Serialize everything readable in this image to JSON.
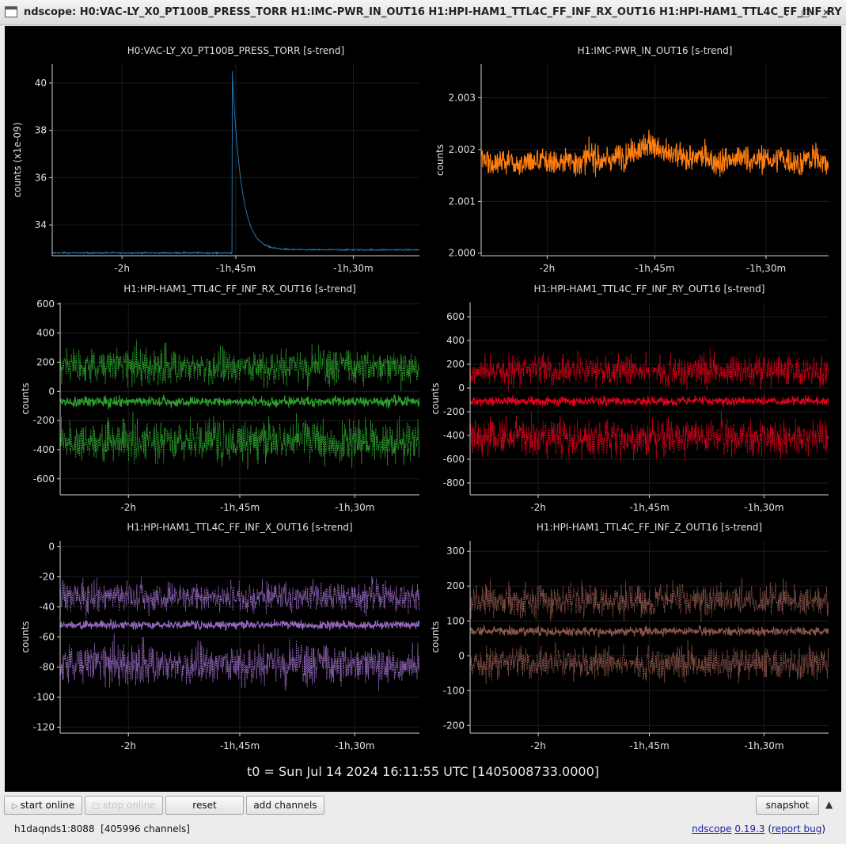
{
  "window": {
    "title": "ndscope: H0:VAC-LY_X0_PT100B_PRESS_TORR H1:IMC-PWR_IN_OUT16 H1:HPI-HAM1_TTL4C_FF_INF_RX_OUT16 H1:HPI-HAM1_TTL4C_FF_INF_RY",
    "minimize": "⌄",
    "maximize": "▢",
    "close": "✕"
  },
  "xticks": [
    "-2h",
    "-1h,45m",
    "-1h,30m"
  ],
  "t0_text": "t0 = Sun Jul 14 2024 16:11:55 UTC [1405008733.0000]",
  "toolbar": {
    "start_online": "start online",
    "stop_online": "stop online",
    "reset": "reset",
    "add_channels": "add channels",
    "snapshot": "snapshot",
    "collapse_icon": "▲"
  },
  "status": {
    "server": "h1daqnds1:8088",
    "channels": "[405996 channels]",
    "app_link": "ndscope",
    "version_link": "0.19.3",
    "open_paren": " (",
    "report_link": "report bug",
    "close_paren": ")"
  },
  "chart_data": [
    {
      "type": "line",
      "title": "H0:VAC-LY_X0_PT100B_PRESS_TORR [s-trend]",
      "ylabel": "counts (x1e-09)",
      "color": "#1f77b4",
      "yticks": [
        "34",
        "36",
        "38",
        "40"
      ],
      "ylim": [
        32.7,
        40.8
      ],
      "x": [
        "-2h",
        "-1h,45m",
        "-1h,30m"
      ],
      "shape": "spike",
      "baseline": 32.82,
      "peak": 40.5,
      "settle": 32.95
    },
    {
      "type": "line",
      "title": "H1:IMC-PWR_IN_OUT16 [s-trend]",
      "ylabel": "counts",
      "color": "#ff7f0e",
      "yticks": [
        "2.000",
        "2.001",
        "2.002",
        "2.003"
      ],
      "ylim": [
        1.99995,
        2.00365
      ],
      "x": [
        "-2h",
        "-1h,45m",
        "-1h,30m"
      ],
      "shape": "noise",
      "mean": 2.0018,
      "spread": 0.00045
    },
    {
      "type": "line",
      "title": "H1:HPI-HAM1_TTL4C_FF_INF_RX_OUT16 [s-trend]",
      "ylabel": "counts",
      "color": "#2ca02c",
      "yticks": [
        "-600",
        "-400",
        "-200",
        "0",
        "200",
        "400",
        "600"
      ],
      "ylim": [
        -710,
        610
      ],
      "x": [
        "-2h",
        "-1h,45m",
        "-1h,30m"
      ],
      "shape": "band3",
      "mean": -70,
      "max_band": 170,
      "min_band": -340
    },
    {
      "type": "line",
      "title": "H1:HPI-HAM1_TTL4C_FF_INF_RY_OUT16 [s-trend]",
      "ylabel": "counts",
      "color": "#e8001c",
      "yticks": [
        "-800",
        "-600",
        "-400",
        "-200",
        "0",
        "200",
        "400",
        "600"
      ],
      "ylim": [
        -900,
        720
      ],
      "x": [
        "-2h",
        "-1h,45m",
        "-1h,30m"
      ],
      "shape": "band3",
      "mean": -110,
      "max_band": 150,
      "min_band": -420
    },
    {
      "type": "line",
      "title": "H1:HPI-HAM1_TTL4C_FF_INF_X_OUT16 [s-trend]",
      "ylabel": "counts",
      "color": "#9467bd",
      "yticks": [
        "-120",
        "-100",
        "-80",
        "-60",
        "-40",
        "-20",
        "0"
      ],
      "ylim": [
        -124,
        4
      ],
      "x": [
        "-2h",
        "-1h,45m",
        "-1h,30m"
      ],
      "shape": "band3",
      "mean": -52,
      "max_band": -33,
      "min_band": -78
    },
    {
      "type": "line",
      "title": "H1:HPI-HAM1_TTL4C_FF_INF_Z_OUT16 [s-trend]",
      "ylabel": "counts",
      "color": "#8c564b",
      "yticks": [
        "-200",
        "-100",
        "0",
        "100",
        "200",
        "300"
      ],
      "ylim": [
        -222,
        330
      ],
      "x": [
        "-2h",
        "-1h,45m",
        "-1h,30m"
      ],
      "shape": "band3",
      "mean": 70,
      "max_band": 160,
      "min_band": -20
    }
  ]
}
